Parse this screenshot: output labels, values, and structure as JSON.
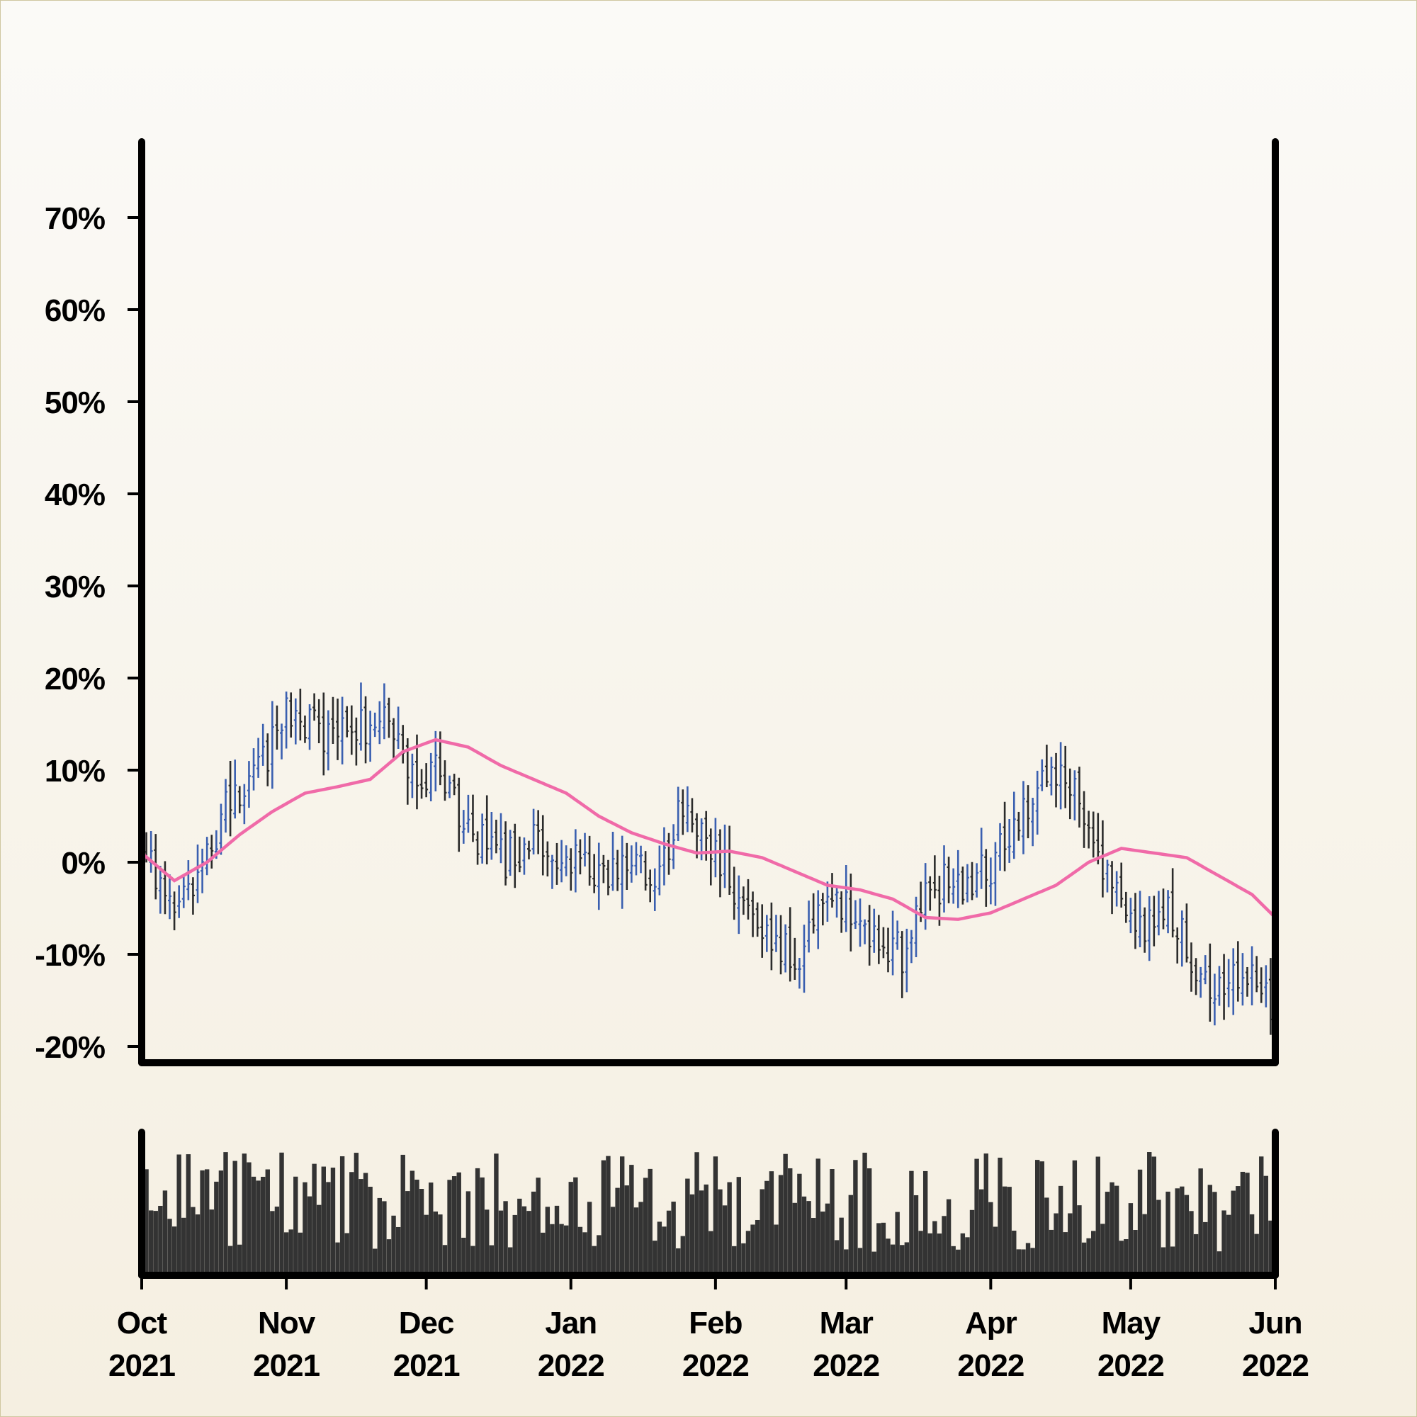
{
  "chart_data": {
    "type": "ohlc",
    "title": "",
    "xlabel": "",
    "ylabel": "",
    "ylim": [
      -20,
      78
    ],
    "y_ticks": [
      -20,
      -10,
      0,
      10,
      20,
      30,
      40,
      50,
      60,
      70
    ],
    "y_tick_labels": [
      "-20%",
      "-10%",
      "0%",
      "10%",
      "20%",
      "30%",
      "40%",
      "50%",
      "60%",
      "70%"
    ],
    "x_range": [
      "2021-10-01",
      "2022-06-01"
    ],
    "x_ticks": [
      {
        "date": "2021-10-01",
        "label": [
          "Oct",
          "2021"
        ]
      },
      {
        "date": "2021-11-01",
        "label": [
          "Nov",
          "2021"
        ]
      },
      {
        "date": "2021-12-01",
        "label": [
          "Dec",
          "2021"
        ]
      },
      {
        "date": "2022-01-01",
        "label": [
          "Jan",
          "2022"
        ]
      },
      {
        "date": "2022-02-01",
        "label": [
          "Feb",
          "2022"
        ]
      },
      {
        "date": "2022-03-01",
        "label": [
          "Mar",
          "2022"
        ]
      },
      {
        "date": "2022-04-01",
        "label": [
          "Apr",
          "2022"
        ]
      },
      {
        "date": "2022-05-01",
        "label": [
          "May",
          "2022"
        ]
      },
      {
        "date": "2022-06-01",
        "label": [
          "Jun",
          "2022"
        ]
      }
    ],
    "close_anchors": [
      {
        "date": "2021-10-01",
        "value": 1
      },
      {
        "date": "2021-10-08",
        "value": -5
      },
      {
        "date": "2021-10-14",
        "value": -1
      },
      {
        "date": "2021-10-20",
        "value": 7
      },
      {
        "date": "2021-10-26",
        "value": 10
      },
      {
        "date": "2021-11-01",
        "value": 16
      },
      {
        "date": "2021-11-08",
        "value": 14
      },
      {
        "date": "2021-11-15",
        "value": 14
      },
      {
        "date": "2021-11-22",
        "value": 16
      },
      {
        "date": "2021-11-29",
        "value": 8
      },
      {
        "date": "2021-12-04",
        "value": 10
      },
      {
        "date": "2021-12-09",
        "value": 5
      },
      {
        "date": "2021-12-16",
        "value": 0
      },
      {
        "date": "2021-12-23",
        "value": 2
      },
      {
        "date": "2021-12-30",
        "value": 1
      },
      {
        "date": "2022-01-06",
        "value": -2
      },
      {
        "date": "2022-01-13",
        "value": 0
      },
      {
        "date": "2022-01-20",
        "value": -1
      },
      {
        "date": "2022-01-25",
        "value": 6
      },
      {
        "date": "2022-01-30",
        "value": 2
      },
      {
        "date": "2022-02-06",
        "value": -3
      },
      {
        "date": "2022-02-12",
        "value": -7
      },
      {
        "date": "2022-02-19",
        "value": -11
      },
      {
        "date": "2022-02-24",
        "value": -3
      },
      {
        "date": "2022-03-02",
        "value": -5
      },
      {
        "date": "2022-03-09",
        "value": -9
      },
      {
        "date": "2022-03-14",
        "value": -10
      },
      {
        "date": "2022-03-19",
        "value": -2
      },
      {
        "date": "2022-03-26",
        "value": -3
      },
      {
        "date": "2022-04-02",
        "value": 0
      },
      {
        "date": "2022-04-09",
        "value": 6
      },
      {
        "date": "2022-04-14",
        "value": 11
      },
      {
        "date": "2022-04-19",
        "value": 7
      },
      {
        "date": "2022-04-24",
        "value": 0
      },
      {
        "date": "2022-04-29",
        "value": -3
      },
      {
        "date": "2022-05-04",
        "value": -7
      },
      {
        "date": "2022-05-09",
        "value": -4
      },
      {
        "date": "2022-05-14",
        "value": -11
      },
      {
        "date": "2022-05-19",
        "value": -14
      },
      {
        "date": "2022-05-24",
        "value": -12
      },
      {
        "date": "2022-05-29",
        "value": -14
      },
      {
        "date": "2022-06-01",
        "value": -18
      }
    ],
    "moving_average": [
      {
        "date": "2021-10-01",
        "value": 1
      },
      {
        "date": "2021-10-08",
        "value": -2
      },
      {
        "date": "2021-10-15",
        "value": 0
      },
      {
        "date": "2021-10-22",
        "value": 3
      },
      {
        "date": "2021-10-29",
        "value": 5.5
      },
      {
        "date": "2021-11-05",
        "value": 7.5
      },
      {
        "date": "2021-11-12",
        "value": 8.2
      },
      {
        "date": "2021-11-19",
        "value": 9
      },
      {
        "date": "2021-11-26",
        "value": 12
      },
      {
        "date": "2021-12-03",
        "value": 13.3
      },
      {
        "date": "2021-12-10",
        "value": 12.5
      },
      {
        "date": "2021-12-17",
        "value": 10.5
      },
      {
        "date": "2021-12-24",
        "value": 9
      },
      {
        "date": "2021-12-31",
        "value": 7.5
      },
      {
        "date": "2022-01-07",
        "value": 5
      },
      {
        "date": "2022-01-14",
        "value": 3.2
      },
      {
        "date": "2022-01-21",
        "value": 2
      },
      {
        "date": "2022-01-28",
        "value": 1
      },
      {
        "date": "2022-02-04",
        "value": 1.2
      },
      {
        "date": "2022-02-11",
        "value": 0.5
      },
      {
        "date": "2022-02-18",
        "value": -1
      },
      {
        "date": "2022-02-25",
        "value": -2.5
      },
      {
        "date": "2022-03-04",
        "value": -3
      },
      {
        "date": "2022-03-11",
        "value": -4
      },
      {
        "date": "2022-03-18",
        "value": -6
      },
      {
        "date": "2022-03-25",
        "value": -6.2
      },
      {
        "date": "2022-04-01",
        "value": -5.5
      },
      {
        "date": "2022-04-08",
        "value": -4
      },
      {
        "date": "2022-04-15",
        "value": -2.5
      },
      {
        "date": "2022-04-22",
        "value": 0
      },
      {
        "date": "2022-04-29",
        "value": 1.5
      },
      {
        "date": "2022-05-06",
        "value": 1
      },
      {
        "date": "2022-05-13",
        "value": 0.5
      },
      {
        "date": "2022-05-20",
        "value": -1.5
      },
      {
        "date": "2022-05-27",
        "value": -3.5
      },
      {
        "date": "2022-06-01",
        "value": -6
      }
    ],
    "colors": {
      "up_bar": "#3a5fb0",
      "down_bar": "#2b2b2b",
      "moving_average": "#f06aa8",
      "volume": "#333333",
      "axis": "#000000"
    },
    "volume_panel": true
  }
}
